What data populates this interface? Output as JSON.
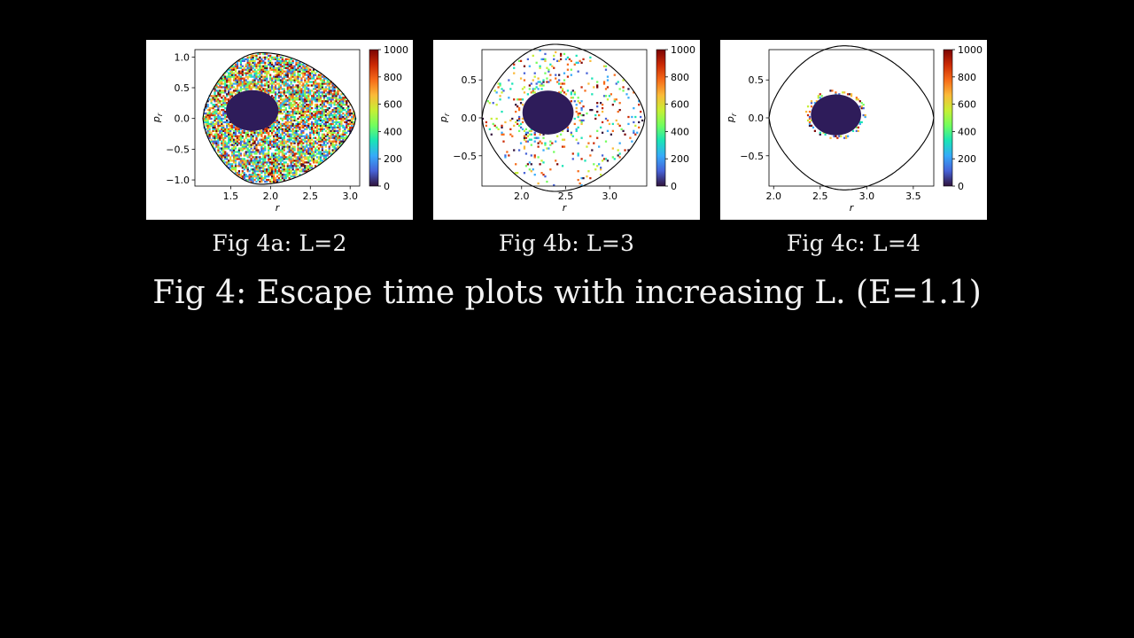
{
  "slide": {
    "title": "Fig 4: Escape time plots with increasing L. (E=1.1)",
    "captions": [
      "Fig 4a: L=2",
      "Fig 4b: L=3",
      "Fig 4c: L=4"
    ]
  },
  "colors": {
    "background": "#000000",
    "panel": "#ffffff",
    "core": "#2e1c5a",
    "colormap": [
      "#30123b",
      "#4662d7",
      "#36aaf9",
      "#1ae4b6",
      "#72fe5e",
      "#c7ef34",
      "#faba39",
      "#f66b19",
      "#cb2a04",
      "#7a0403"
    ]
  },
  "chart_data": [
    {
      "type": "heatmap",
      "title": "Fig 4a: L=2",
      "xlabel": "r",
      "ylabel": "p_r",
      "xlim": [
        1.05,
        3.12
      ],
      "ylim": [
        -1.1,
        1.12
      ],
      "xticks": [
        1.5,
        2.0,
        2.5,
        3.0
      ],
      "xtick_labels": [
        "1.5",
        "2.0",
        "2.5",
        "3.0"
      ],
      "yticks": [
        -1.0,
        -0.5,
        0.0,
        0.5,
        1.0
      ],
      "ytick_labels": [
        "−1.0",
        "−0.5",
        "0.0",
        "0.5",
        "1.0"
      ],
      "colorbar": {
        "range": [
          0,
          1000
        ],
        "ticks": [
          0,
          200,
          400,
          600,
          800,
          1000
        ],
        "tick_labels": [
          "0",
          "200",
          "400",
          "600",
          "800",
          "1000"
        ]
      },
      "boundary": {
        "r_min": 1.15,
        "r_max": 3.07,
        "r_peak": 1.88,
        "p_max": 1.07
      },
      "core": {
        "center": [
          1.77,
          0.13
        ],
        "radius_r": 0.33,
        "radius_p": 0.33,
        "value": 0
      },
      "scatter_density": 0.72
    },
    {
      "type": "heatmap",
      "title": "Fig 4b: L=3",
      "xlabel": "r",
      "ylabel": "p_r",
      "xlim": [
        1.55,
        3.42
      ],
      "ylim": [
        -0.9,
        0.9
      ],
      "xticks": [
        2.0,
        2.5,
        3.0
      ],
      "xtick_labels": [
        "2.0",
        "2.5",
        "3.0"
      ],
      "yticks": [
        -0.5,
        0.0,
        0.5
      ],
      "ytick_labels": [
        "−0.5",
        "0.0",
        "0.5"
      ],
      "colorbar": {
        "range": [
          0,
          1000
        ],
        "ticks": [
          0,
          200,
          400,
          600,
          800,
          1000
        ],
        "tick_labels": [
          "0",
          "200",
          "400",
          "600",
          "800",
          "1000"
        ]
      },
      "boundary": {
        "r_min": 1.55,
        "r_max": 3.4,
        "r_peak": 2.38,
        "p_max": 0.97
      },
      "core": {
        "center": [
          2.3,
          0.07
        ],
        "radius_r": 0.29,
        "radius_p": 0.29,
        "value": 0
      },
      "scatter_density": 0.07
    },
    {
      "type": "heatmap",
      "title": "Fig 4c: L=4",
      "xlabel": "r",
      "ylabel": "p_r",
      "xlim": [
        1.95,
        3.72
      ],
      "ylim": [
        -0.9,
        0.9
      ],
      "xticks": [
        2.0,
        2.5,
        3.0,
        3.5
      ],
      "xtick_labels": [
        "2.0",
        "2.5",
        "3.0",
        "3.5"
      ],
      "yticks": [
        -0.5,
        0.0,
        0.5
      ],
      "ytick_labels": [
        "−0.5",
        "0.0",
        "0.5"
      ],
      "colorbar": {
        "range": [
          0,
          1000
        ],
        "ticks": [
          0,
          200,
          400,
          600,
          800,
          1000
        ],
        "tick_labels": [
          "0",
          "200",
          "400",
          "600",
          "800",
          "1000"
        ]
      },
      "boundary": {
        "r_min": 1.95,
        "r_max": 3.72,
        "r_peak": 2.76,
        "p_max": 0.95
      },
      "core": {
        "center": [
          2.67,
          0.04
        ],
        "radius_r": 0.27,
        "radius_p": 0.27,
        "value": 0
      },
      "scatter_density": 0.012
    }
  ]
}
